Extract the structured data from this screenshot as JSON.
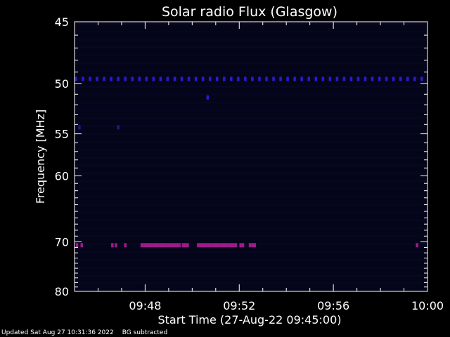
{
  "chart_data": {
    "type": "heatmap",
    "title": "Solar radio Flux (Glasgow)",
    "xlabel": "Start Time (27-Aug-22 09:45:00)",
    "ylabel": "Frequency [MHz]",
    "x_range_minutes": [
      0,
      15
    ],
    "x_ticks": [
      {
        "minute": 3,
        "label": "09:48"
      },
      {
        "minute": 7,
        "label": "09:52"
      },
      {
        "minute": 11,
        "label": "09:56"
      },
      {
        "minute": 15,
        "label": "10:00"
      }
    ],
    "y_axis_scale": "reciprocal",
    "y_range_mhz": [
      45,
      80
    ],
    "y_ticks": [
      45,
      50,
      55,
      60,
      70,
      80
    ],
    "grid": false,
    "background_color": "#05051a",
    "bands": [
      {
        "freq_mhz": 49.6,
        "color": "#2a1bd6",
        "minutes": [
          0.05,
          0.35,
          0.65,
          0.95,
          1.25,
          1.55,
          1.85,
          2.15,
          2.45,
          2.75,
          3.05,
          3.35,
          3.65,
          3.95,
          4.25,
          4.55,
          4.85,
          5.15,
          5.45,
          5.75,
          6.05,
          6.35,
          6.65,
          6.95,
          7.25,
          7.55,
          7.85,
          8.15,
          8.45,
          8.75,
          9.05,
          9.35,
          9.65,
          9.95,
          10.25,
          10.55,
          10.85,
          11.15,
          11.45,
          11.75,
          12.05,
          12.35,
          12.65,
          12.95,
          13.25,
          13.55,
          13.85,
          14.15,
          14.45,
          14.75
        ]
      },
      {
        "freq_mhz": 51.3,
        "color": "#2a1bd6",
        "minutes": [
          5.65
        ]
      },
      {
        "freq_mhz": 54.3,
        "color": "#1c1890",
        "minutes": [
          0.2,
          1.85
        ]
      },
      {
        "freq_mhz": 70.6,
        "color": "#a01a8c",
        "minutes": [
          0.1,
          0.3,
          1.6,
          1.75,
          2.15,
          2.85,
          2.95,
          3.05,
          3.15,
          3.25,
          3.35,
          3.45,
          3.55,
          3.65,
          3.75,
          3.85,
          3.95,
          4.05,
          4.15,
          4.25,
          4.35,
          4.45,
          4.6,
          4.7,
          4.8,
          5.25,
          5.35,
          5.45,
          5.55,
          5.65,
          5.75,
          5.85,
          5.95,
          6.05,
          6.15,
          6.25,
          6.35,
          6.45,
          6.55,
          6.65,
          6.75,
          6.85,
          7.05,
          7.15,
          7.45,
          7.55,
          7.65,
          14.55
        ]
      }
    ]
  },
  "footer": {
    "updated": "Updated Sat Aug 27 10:31:36 2022",
    "bg": "BG subtracted"
  },
  "colors": {
    "axis": "#ffffff",
    "text": "#ffffff"
  }
}
